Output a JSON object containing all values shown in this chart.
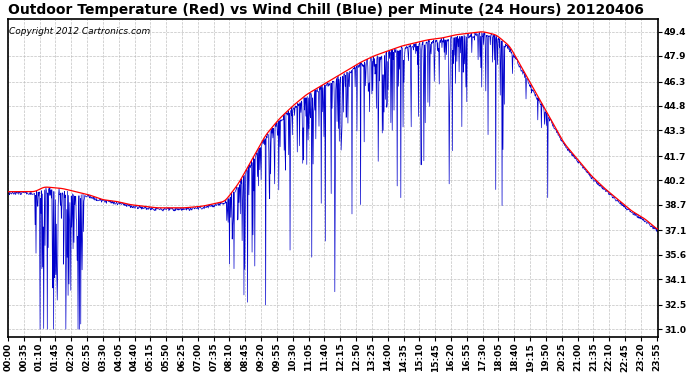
{
  "title": "Outdoor Temperature (Red) vs Wind Chill (Blue) per Minute (24 Hours) 20120406",
  "copyright": "Copyright 2012 Cartronics.com",
  "yticks": [
    31.0,
    32.5,
    34.1,
    35.6,
    37.1,
    38.7,
    40.2,
    41.7,
    43.3,
    44.8,
    46.3,
    47.9,
    49.4
  ],
  "ylim": [
    30.5,
    50.2
  ],
  "temp_color": "#ff0000",
  "wind_color": "#0000cc",
  "background_color": "#ffffff",
  "grid_color": "#bbbbbb",
  "title_fontsize": 10,
  "copyright_fontsize": 6.5,
  "tick_fontsize": 6.5,
  "xtick_interval": 35,
  "total_minutes": 1440,
  "figwidth": 6.9,
  "figheight": 3.75,
  "dpi": 100
}
